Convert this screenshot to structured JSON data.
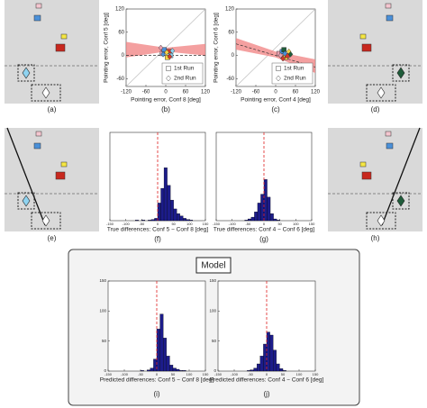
{
  "chart_data": [
    {
      "type": "scatter",
      "panel_label": "(b)",
      "xlabel": "Pointing error, Conf 8 [deg]",
      "ylabel": "Pointing error, Conf 5 [deg]",
      "xlim": [
        -120,
        120
      ],
      "ylim": [
        -80,
        120
      ],
      "xticks": [
        -120,
        -60,
        0,
        60,
        120
      ],
      "yticks": [
        -60,
        0,
        60,
        120
      ],
      "band": {
        "x": [
          -120,
          0,
          120
        ],
        "lower": [
          -5,
          10,
          0
        ],
        "upper": [
          35,
          20,
          30
        ],
        "color": "#f08080"
      },
      "fit": {
        "x": [
          -120,
          120
        ],
        "y": [
          0,
          0
        ]
      },
      "series": [
        {
          "name": "1st Run",
          "marker": "square",
          "x": [
            -10,
            -5,
            5,
            10,
            15
          ],
          "y": [
            5,
            15,
            -5,
            10,
            0
          ],
          "colors": [
            "#e8a0b0",
            "#4a90d9",
            "#f5d442",
            "#d43a2a",
            "#8fd3f0"
          ]
        },
        {
          "name": "2nd Run",
          "marker": "diamond",
          "x": [
            -15,
            -8,
            3,
            12,
            20
          ],
          "y": [
            20,
            3,
            8,
            -3,
            12
          ],
          "colors": [
            "#e8a0b0",
            "#4a90d9",
            "#f5d442",
            "#d43a2a",
            "#8fd3f0"
          ]
        }
      ]
    },
    {
      "type": "scatter",
      "panel_label": "(c)",
      "xlabel": "Pointing error, Conf 4 [deg]",
      "ylabel": "Pointing error, Conf 6 [deg]",
      "xlim": [
        -120,
        120
      ],
      "ylim": [
        -80,
        120
      ],
      "xticks": [
        -120,
        -60,
        0,
        60,
        120
      ],
      "yticks": [
        -60,
        0,
        60,
        120
      ],
      "band": {
        "x": [
          -120,
          0,
          120
        ],
        "lower": [
          15,
          -5,
          -45
        ],
        "upper": [
          45,
          10,
          -10
        ],
        "color": "#f08080"
      },
      "fit": {
        "x": [
          -120,
          120
        ],
        "y": [
          30,
          -30
        ]
      },
      "series": [
        {
          "name": "1st Run",
          "marker": "square",
          "x": [
            10,
            20,
            30,
            35,
            25
          ],
          "y": [
            5,
            10,
            -5,
            0,
            15
          ],
          "colors": [
            "#e8a0b0",
            "#4a90d9",
            "#f5d442",
            "#d43a2a",
            "#1f5c3a"
          ]
        },
        {
          "name": "2nd Run",
          "marker": "diamond",
          "x": [
            15,
            28,
            40,
            22,
            45
          ],
          "y": [
            0,
            5,
            10,
            -8,
            3
          ],
          "colors": [
            "#e8a0b0",
            "#4a90d9",
            "#f5d442",
            "#d43a2a",
            "#1f5c3a"
          ]
        }
      ]
    },
    {
      "type": "histogram",
      "panel_label": "(f)",
      "xlabel": "True differences: Conf 5 − Conf 8 [deg]",
      "color": "#1c1c8a",
      "xlim": [
        -150,
        150
      ],
      "ylim": [
        0,
        150
      ],
      "xticks": [
        -150,
        -100,
        -50,
        0,
        50,
        100,
        150
      ],
      "bins": [
        -150,
        -140,
        -130,
        -120,
        -110,
        -100,
        -90,
        -80,
        -70,
        -60,
        -50,
        -40,
        -30,
        -20,
        -10,
        0,
        10,
        20,
        30,
        40,
        50,
        60,
        70,
        80,
        90,
        100,
        110,
        120,
        130,
        140,
        150
      ],
      "counts": [
        0,
        0,
        0,
        0,
        0,
        0,
        0,
        0,
        1,
        0,
        1,
        0,
        1,
        2,
        4,
        30,
        55,
        90,
        60,
        35,
        20,
        12,
        8,
        4,
        2,
        1,
        0,
        0,
        0,
        0
      ]
    },
    {
      "type": "histogram",
      "panel_label": "(g)",
      "xlabel": "True differences: Conf 4 − Conf 6 [deg]",
      "color": "#1c1c8a",
      "xlim": [
        -150,
        150
      ],
      "ylim": [
        0,
        150
      ],
      "xticks": [
        -150,
        -100,
        -50,
        0,
        50,
        100,
        150
      ],
      "bins": [
        -150,
        -140,
        -130,
        -120,
        -110,
        -100,
        -90,
        -80,
        -70,
        -60,
        -50,
        -40,
        -30,
        -20,
        -10,
        0,
        10,
        20,
        30,
        40,
        50,
        60,
        70,
        80,
        90,
        100,
        110,
        120,
        130,
        140,
        150
      ],
      "counts": [
        0,
        0,
        0,
        0,
        0,
        0,
        0,
        0,
        0,
        1,
        3,
        6,
        15,
        30,
        45,
        70,
        40,
        12,
        3,
        1,
        0,
        0,
        0,
        0,
        0,
        0,
        0,
        0,
        0,
        0
      ]
    },
    {
      "type": "histogram",
      "panel_label": "(i)",
      "xlabel": "Predicted differences: Conf 5 − Conf 8 [deg]",
      "color": "#1c1c8a",
      "xlim": [
        -150,
        150
      ],
      "ylim": [
        0,
        150
      ],
      "xticks": [
        -150,
        -100,
        -50,
        0,
        50,
        100,
        150
      ],
      "yticks": [
        0,
        50,
        100,
        150
      ],
      "bins": [
        -150,
        -140,
        -130,
        -120,
        -110,
        -100,
        -90,
        -80,
        -70,
        -60,
        -50,
        -40,
        -30,
        -20,
        -10,
        0,
        10,
        20,
        30,
        40,
        50,
        60,
        70,
        80,
        90,
        100,
        110,
        120,
        130,
        140,
        150
      ],
      "counts": [
        0,
        0,
        0,
        0,
        0,
        0,
        0,
        0,
        0,
        0,
        1,
        0,
        2,
        5,
        20,
        70,
        95,
        55,
        25,
        10,
        5,
        3,
        1,
        1,
        0,
        0,
        0,
        0,
        0,
        0
      ]
    },
    {
      "type": "histogram",
      "panel_label": "(j)",
      "xlabel": "Predicted differences: Conf 4 − Conf 6 [deg]",
      "color": "#1c1c8a",
      "xlim": [
        -150,
        150
      ],
      "ylim": [
        0,
        150
      ],
      "xticks": [
        -150,
        -100,
        -50,
        0,
        50,
        100,
        150
      ],
      "yticks": [
        0,
        50,
        100,
        150
      ],
      "bins": [
        -150,
        -140,
        -130,
        -120,
        -110,
        -100,
        -90,
        -80,
        -70,
        -60,
        -50,
        -40,
        -30,
        -20,
        -10,
        0,
        10,
        20,
        30,
        40,
        50,
        60,
        70,
        80,
        90,
        100,
        110,
        120,
        130,
        140,
        150
      ],
      "counts": [
        0,
        0,
        0,
        0,
        0,
        0,
        0,
        0,
        0,
        1,
        2,
        5,
        12,
        25,
        45,
        65,
        60,
        35,
        12,
        4,
        1,
        0,
        0,
        0,
        0,
        0,
        0,
        0,
        0,
        0
      ]
    }
  ],
  "diagrams": [
    {
      "label": "(a)"
    },
    {
      "label": "(d)"
    },
    {
      "label": "(e)"
    },
    {
      "label": "(h)"
    }
  ],
  "model_box": {
    "title": "Model"
  }
}
